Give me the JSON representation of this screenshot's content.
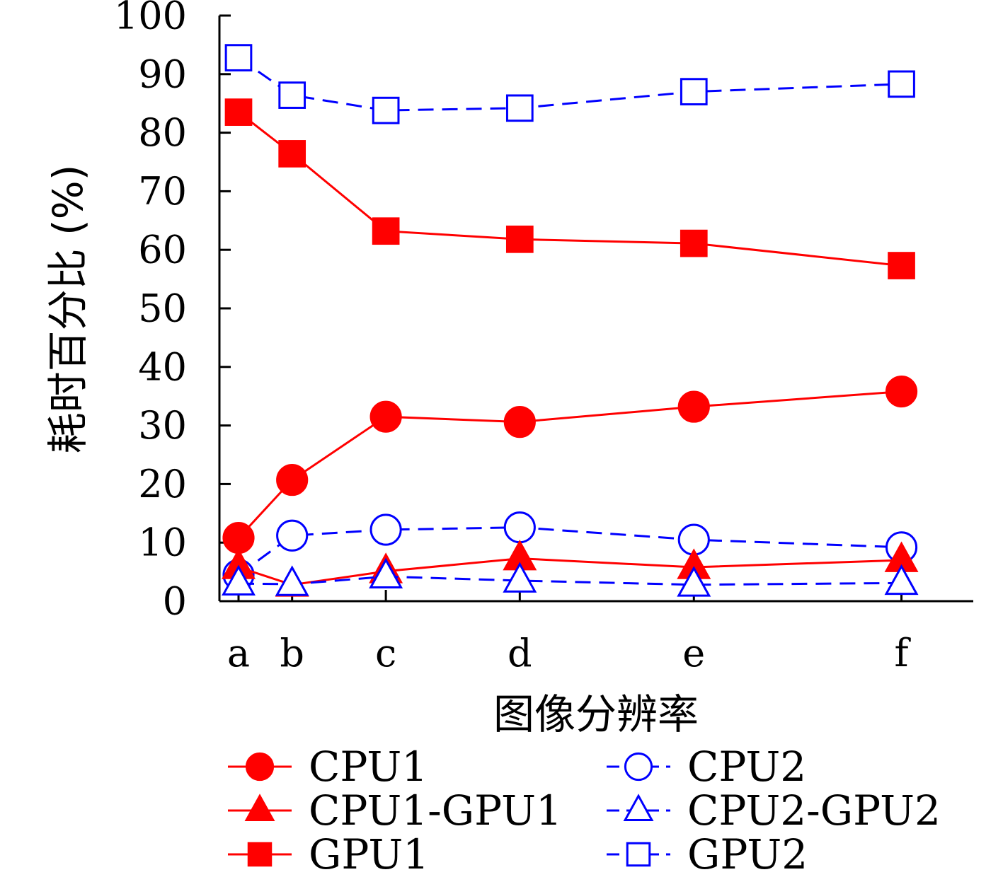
{
  "chart_data": {
    "type": "line",
    "title": "",
    "xlabel": "图像分辨率",
    "ylabel": "耗时百分比 (%)",
    "categories": [
      "a",
      "b",
      "c",
      "d",
      "e",
      "f"
    ],
    "x": [
      0.0,
      0.8,
      2.2,
      4.2,
      6.8,
      9.9
    ],
    "ylim": [
      0,
      100
    ],
    "yticks": [
      0,
      10,
      20,
      30,
      40,
      50,
      60,
      70,
      80,
      90,
      100
    ],
    "grid": false,
    "legend_position": "bottom",
    "series": [
      {
        "name": "CPU1",
        "values": [
          10.8,
          20.7,
          31.5,
          30.6,
          33.2,
          35.8
        ],
        "color": "#ff0000",
        "dash": "solid",
        "marker": "circle",
        "fill": true
      },
      {
        "name": "CPU2",
        "values": [
          4.5,
          11.2,
          12.2,
          12.6,
          10.5,
          9.2
        ],
        "color": "#0000ff",
        "dash": "dashed",
        "marker": "circle",
        "fill": false
      },
      {
        "name": "CPU1-GPU1",
        "values": [
          5.8,
          2.8,
          5.1,
          7.3,
          5.8,
          7.0
        ],
        "color": "#ff0000",
        "dash": "solid",
        "marker": "triangle",
        "fill": true
      },
      {
        "name": "CPU2-GPU2",
        "values": [
          3.0,
          2.9,
          4.2,
          3.5,
          2.8,
          3.1
        ],
        "color": "#0000ff",
        "dash": "dashed",
        "marker": "triangle",
        "fill": false
      },
      {
        "name": "GPU1",
        "values": [
          83.5,
          76.4,
          63.2,
          61.8,
          61.1,
          57.3
        ],
        "color": "#ff0000",
        "dash": "solid",
        "marker": "square",
        "fill": true
      },
      {
        "name": "GPU2",
        "values": [
          92.8,
          86.4,
          83.8,
          84.2,
          87.0,
          88.3
        ],
        "color": "#0000ff",
        "dash": "dashed",
        "marker": "square",
        "fill": false
      }
    ]
  }
}
